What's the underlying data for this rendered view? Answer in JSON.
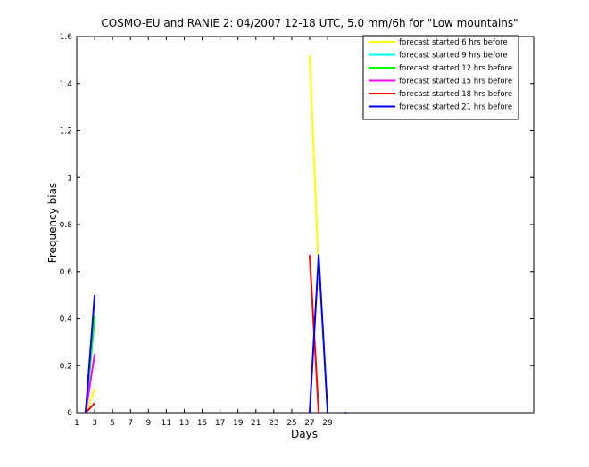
{
  "chart_data": {
    "type": "line",
    "title": "COSMO-EU and RANIE 2: 04/2007 12-18 UTC, 5.0 mm/6h for \"Low mountains\"",
    "xlabel": "Days",
    "ylabel": "Frequency bias",
    "xlim": [
      1,
      52
    ],
    "ylim": [
      0,
      1.6
    ],
    "x_ticks": [
      1,
      3,
      5,
      7,
      9,
      11,
      13,
      15,
      17,
      19,
      21,
      23,
      25,
      27,
      29
    ],
    "y_ticks": [
      0,
      0.2,
      0.4,
      0.6,
      0.8,
      1,
      1.2,
      1.4,
      1.6
    ],
    "y_tick_labels": [
      "0",
      "0.2",
      "0.4",
      "0.6",
      "0.8",
      "1",
      "1.2",
      "1.4",
      "1.6"
    ],
    "grid": false,
    "legend_position": "top-right",
    "series": [
      {
        "name": "forecast started 6 hrs before",
        "color": "#ffff00",
        "segments": [
          [
            [
              2,
              0
            ],
            [
              3,
              0.1
            ]
          ],
          [
            [
              27,
              1.52
            ],
            [
              28,
              0.6
            ]
          ]
        ]
      },
      {
        "name": "forecast started 9 hrs before",
        "color": "#00ffff",
        "segments": [
          [
            [
              2,
              0
            ],
            [
              3,
              0.4
            ]
          ]
        ]
      },
      {
        "name": "forecast started 12 hrs before",
        "color": "#00ff00",
        "segments": [
          [
            [
              2,
              0
            ],
            [
              3,
              0.41
            ]
          ]
        ]
      },
      {
        "name": "forecast started 15 hrs before",
        "color": "#ff00ff",
        "segments": [
          [
            [
              2,
              0
            ],
            [
              3,
              0.25
            ]
          ]
        ]
      },
      {
        "name": "forecast started 18 hrs before",
        "color": "#ff0000",
        "segments": [
          [
            [
              2,
              0
            ],
            [
              3,
              0.04
            ]
          ],
          [
            [
              27,
              0.67
            ],
            [
              28,
              0
            ]
          ]
        ]
      },
      {
        "name": "forecast started 21 hrs before",
        "color": "#0000ff",
        "segments": [
          [
            [
              2,
              0
            ],
            [
              3,
              0.5
            ]
          ],
          [
            [
              27,
              0
            ],
            [
              28,
              0.67
            ],
            [
              29,
              0
            ]
          ],
          [
            [
              31,
              0
            ],
            [
              31.1,
              0
            ]
          ]
        ]
      }
    ]
  }
}
